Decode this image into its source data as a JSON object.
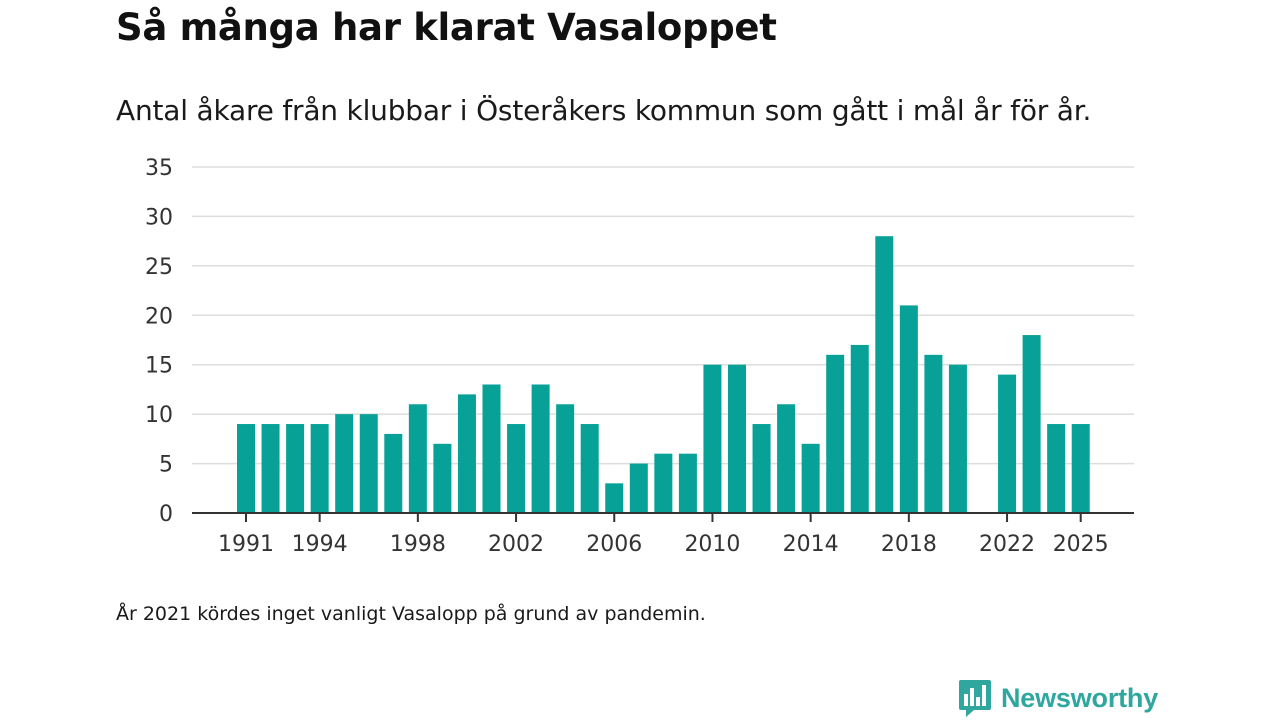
{
  "header": {
    "title": "Så många har klarat Vasaloppet",
    "subtitle": "Antal åkare från klubbar i Österåkers kommun som gått i mål år för år."
  },
  "footer": {
    "note": "År 2021 kördes inget vanligt Vasalopp på grund av pandemin.",
    "brand": "Newsworthy",
    "brand_icon": "bar-chart-speech-bubble-icon"
  },
  "colors": {
    "bar": "#07a197",
    "grid": "#dddddd",
    "axis": "#333333",
    "brand": "#2fa79f"
  },
  "chart_data": {
    "type": "bar",
    "title": "Så många har klarat Vasaloppet",
    "subtitle": "Antal åkare från klubbar i Österåkers kommun som gått i mål år för år.",
    "xlabel": "",
    "ylabel": "",
    "ylim": [
      0,
      35
    ],
    "yticks": [
      0,
      5,
      10,
      15,
      20,
      25,
      30,
      35
    ],
    "xticks": [
      1991,
      1994,
      1998,
      2002,
      2006,
      2010,
      2014,
      2018,
      2022,
      2025
    ],
    "grid": true,
    "categories": [
      1991,
      1992,
      1993,
      1994,
      1995,
      1996,
      1997,
      1998,
      1999,
      2000,
      2001,
      2002,
      2003,
      2004,
      2005,
      2006,
      2007,
      2008,
      2009,
      2010,
      2011,
      2012,
      2013,
      2014,
      2015,
      2016,
      2017,
      2018,
      2019,
      2020,
      2021,
      2022,
      2023,
      2024,
      2025
    ],
    "values": [
      9,
      9,
      9,
      9,
      10,
      10,
      8,
      11,
      7,
      12,
      13,
      9,
      13,
      11,
      9,
      3,
      5,
      6,
      6,
      15,
      15,
      9,
      11,
      7,
      16,
      17,
      28,
      21,
      16,
      15,
      null,
      14,
      18,
      9,
      9
    ]
  }
}
